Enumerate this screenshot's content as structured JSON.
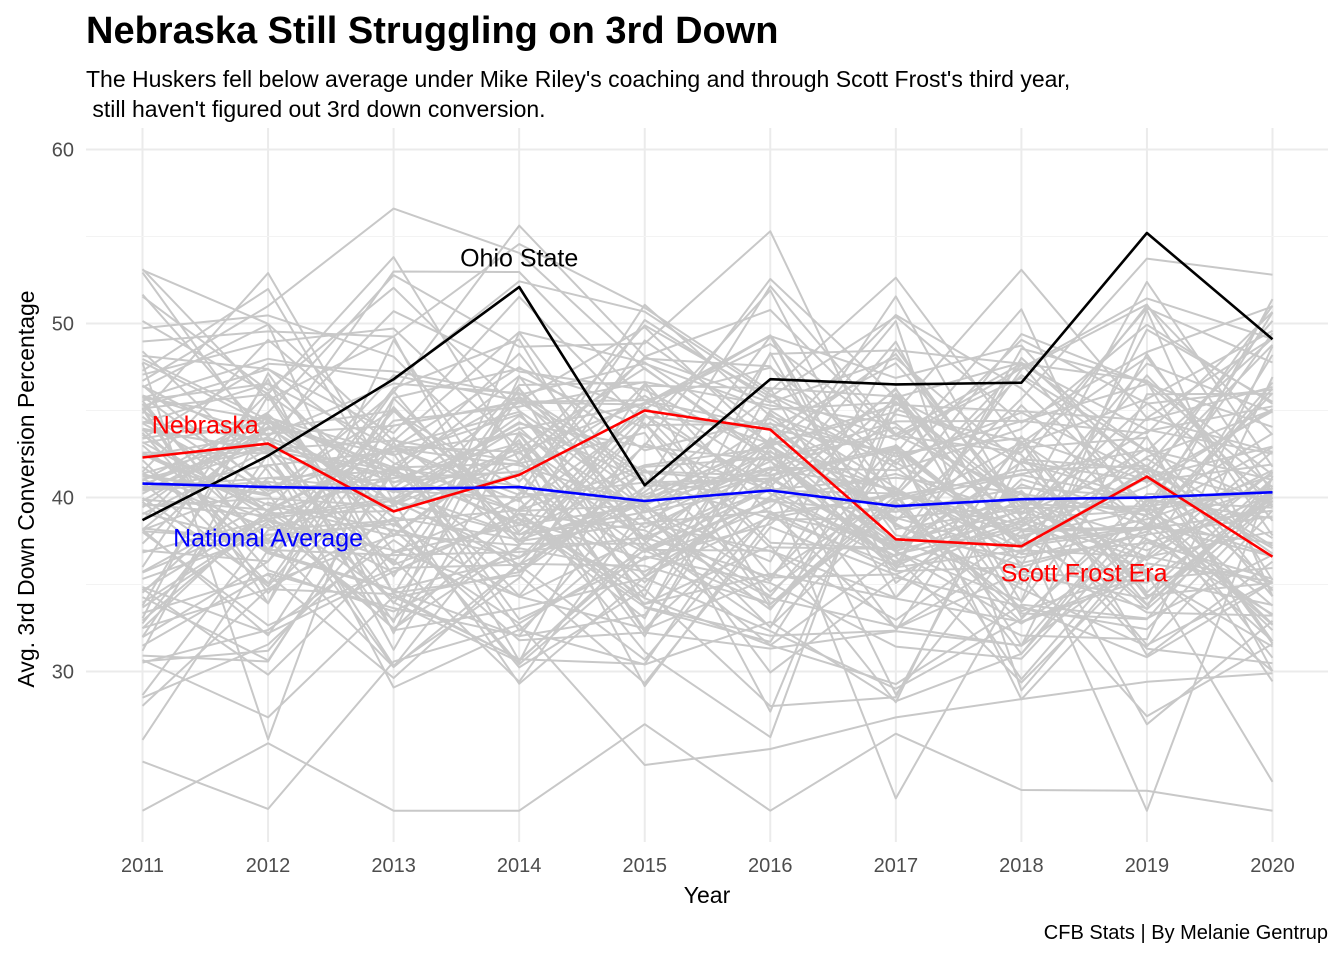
{
  "chart_data": {
    "type": "line",
    "title": "Nebraska Still Struggling on 3rd Down",
    "subtitle_lines": [
      "The Huskers fell below average under Mike Riley's coaching and through Scott Frost's third year,",
      " still haven't figured out 3rd down conversion."
    ],
    "caption": "CFB Stats | By Melanie Gentrup",
    "xlabel": "Year",
    "ylabel": "Avg. 3rd Down Conversion Percentage",
    "x": [
      2011,
      2012,
      2013,
      2014,
      2015,
      2016,
      2017,
      2018,
      2019,
      2020
    ],
    "x_tick_labels": [
      "2011",
      "2012",
      "2013",
      "2014",
      "2015",
      "2016",
      "2017",
      "2018",
      "2019",
      "2020"
    ],
    "y_ticks": [
      30,
      40,
      50,
      60
    ],
    "y_tick_labels": [
      "30",
      "40",
      "50",
      "60"
    ],
    "ylim": [
      20,
      60
    ],
    "grid": true,
    "background_series": {
      "color": "#c8c8c8",
      "count": 120,
      "min": 22,
      "max": 59
    },
    "series": [
      {
        "key": "nebraska",
        "values": [
          42.3,
          43.1,
          39.2,
          41.3,
          45.0,
          43.9,
          37.6,
          37.2,
          41.2,
          36.6
        ],
        "color": "#ff0000"
      },
      {
        "key": "ohio_state",
        "values": [
          38.7,
          42.4,
          46.8,
          52.1,
          40.7,
          46.8,
          46.5,
          46.6,
          55.2,
          49.1
        ],
        "color": "#000000"
      },
      {
        "key": "national_average",
        "values": [
          40.8,
          40.6,
          40.5,
          40.6,
          39.8,
          40.4,
          39.5,
          39.9,
          40.0,
          40.3
        ],
        "color": "#0000ff"
      }
    ],
    "annotations": [
      {
        "text": "Ohio State",
        "x": 2014,
        "y": 53.8,
        "color": "#000000"
      },
      {
        "text": "Nebraska",
        "x": 2011.5,
        "y": 44.2,
        "color": "#ff0000"
      },
      {
        "text": "National Average",
        "x": 2012.0,
        "y": 37.7,
        "color": "#0000ff"
      },
      {
        "text": "Scott Frost Era",
        "x": 2018.5,
        "y": 35.7,
        "color": "#ff0000"
      }
    ]
  }
}
